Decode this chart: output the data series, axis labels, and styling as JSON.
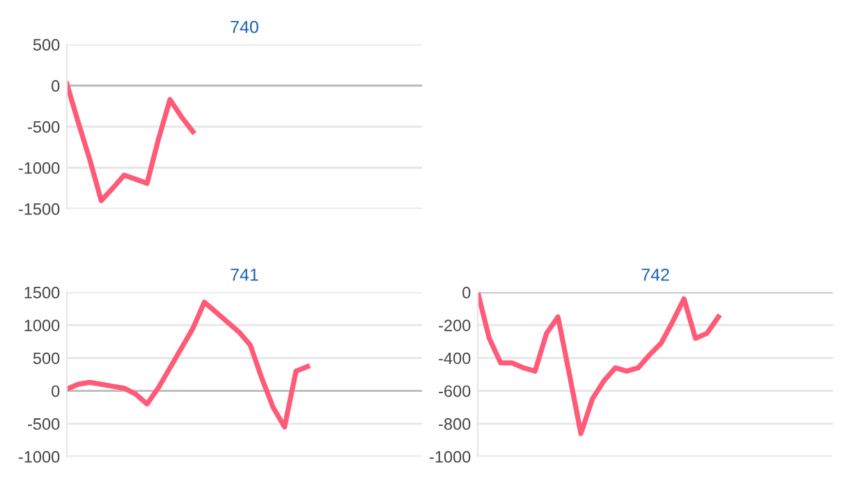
{
  "chart_data": [
    {
      "type": "line",
      "title": "740",
      "categories": [
        null,
        null,
        null,
        null,
        null,
        null,
        null,
        null,
        null,
        null,
        null,
        null,
        null,
        null,
        null,
        null,
        null,
        null,
        null,
        null,
        null,
        null,
        null,
        null,
        null,
        null,
        null,
        null,
        null,
        null,
        null,
        null
      ],
      "series": [
        {
          "color": "#ff5a78",
          "values": [
            20,
            -450,
            -900,
            -1400,
            -1250,
            -1090,
            -1140,
            -1190,
            -650,
            -170,
            -380,
            -560,
            null,
            null,
            null,
            null,
            null,
            null,
            null,
            null,
            null,
            null,
            null,
            null,
            null,
            null,
            null,
            null,
            null,
            null,
            null,
            null
          ]
        }
      ],
      "ylim": [
        -1500,
        500
      ],
      "yticks": [
        -1500,
        -1000,
        -500,
        0,
        500
      ],
      "grid": "y",
      "tick_labels": "y",
      "marker": "none",
      "line_style": "solid"
    },
    {
      "type": "line",
      "title": "741",
      "categories": [
        null,
        null,
        null,
        null,
        null,
        null,
        null,
        null,
        null,
        null,
        null,
        null,
        null,
        null,
        null,
        null,
        null,
        null,
        null,
        null,
        null,
        null,
        null,
        null,
        null,
        null,
        null,
        null,
        null,
        null,
        null,
        null
      ],
      "series": [
        {
          "color": "#ff5a78",
          "values": [
            30,
            100,
            130,
            100,
            70,
            40,
            -50,
            -200,
            50,
            350,
            650,
            950,
            1350,
            1200,
            1050,
            900,
            700,
            200,
            -250,
            -550,
            300,
            370,
            null,
            null,
            null,
            null,
            null,
            null,
            null,
            null,
            null,
            null
          ]
        }
      ],
      "ylim": [
        -1000,
        1500
      ],
      "yticks": [
        -1000,
        -500,
        0,
        500,
        1000,
        1500
      ],
      "grid": "y",
      "tick_labels": "y",
      "marker": "none",
      "line_style": "solid"
    },
    {
      "type": "line",
      "title": "742",
      "categories": [
        null,
        null,
        null,
        null,
        null,
        null,
        null,
        null,
        null,
        null,
        null,
        null,
        null,
        null,
        null,
        null,
        null,
        null,
        null,
        null,
        null,
        null,
        null,
        null,
        null,
        null,
        null,
        null,
        null,
        null,
        null,
        null
      ],
      "series": [
        {
          "color": "#ff5a78",
          "values": [
            0,
            -280,
            -430,
            -430,
            -460,
            -480,
            -250,
            -150,
            -500,
            -860,
            -650,
            -540,
            -460,
            -480,
            -460,
            -380,
            -310,
            -180,
            -40,
            -280,
            -250,
            -150,
            null,
            null,
            null,
            null,
            null,
            null,
            null,
            null,
            null,
            null
          ]
        }
      ],
      "ylim": [
        -1000,
        0
      ],
      "yticks": [
        -1000,
        -800,
        -600,
        -400,
        -200,
        0
      ],
      "grid": "y",
      "tick_labels": "y",
      "marker": "none",
      "line_style": "solid"
    }
  ]
}
